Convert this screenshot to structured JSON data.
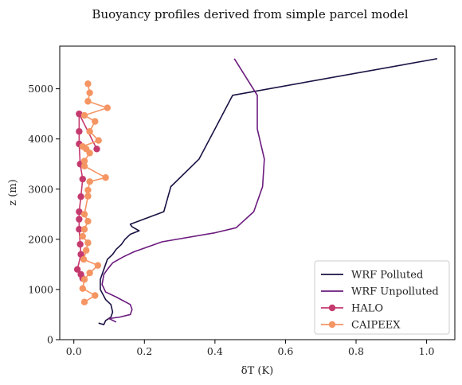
{
  "chart_data": {
    "type": "line",
    "title": "Buoyancy profiles derived from simple parcel model",
    "xlabel": "δT (K)",
    "ylabel": "z (m)",
    "xlim": [
      -0.04,
      1.08
    ],
    "ylim": [
      0,
      5850
    ],
    "xticks": [
      0.0,
      0.2,
      0.4,
      0.6,
      0.8,
      1.0
    ],
    "xtick_labels": [
      "0.0",
      "0.2",
      "0.4",
      "0.6",
      "0.8",
      "1.0"
    ],
    "yticks": [
      0,
      1000,
      2000,
      3000,
      4000,
      5000
    ],
    "ytick_labels": [
      "0",
      "1000",
      "2000",
      "3000",
      "4000",
      "5000"
    ],
    "grid": false,
    "legend_position": "bottom-right",
    "series": [
      {
        "name": "WRF Polluted",
        "color": "#1b1143",
        "marker": "none",
        "points": [
          [
            0.07,
            330
          ],
          [
            0.085,
            300
          ],
          [
            0.09,
            380
          ],
          [
            0.105,
            450
          ],
          [
            0.11,
            550
          ],
          [
            0.105,
            700
          ],
          [
            0.09,
            800
          ],
          [
            0.075,
            1000
          ],
          [
            0.075,
            1200
          ],
          [
            0.085,
            1400
          ],
          [
            0.09,
            1500
          ],
          [
            0.095,
            1600
          ],
          [
            0.11,
            1700
          ],
          [
            0.12,
            1800
          ],
          [
            0.135,
            1900
          ],
          [
            0.145,
            2000
          ],
          [
            0.16,
            2100
          ],
          [
            0.185,
            2170
          ],
          [
            0.165,
            2250
          ],
          [
            0.16,
            2300
          ],
          [
            0.255,
            2550
          ],
          [
            0.275,
            3050
          ],
          [
            0.355,
            3600
          ],
          [
            0.4,
            4200
          ],
          [
            0.45,
            4870
          ],
          [
            1.03,
            5600
          ]
        ]
      },
      {
        "name": "WRF Unpolluted",
        "color": "#6b1b7e",
        "marker": "none",
        "points": [
          [
            0.12,
            350
          ],
          [
            0.1,
            420
          ],
          [
            0.13,
            450
          ],
          [
            0.16,
            500
          ],
          [
            0.165,
            600
          ],
          [
            0.16,
            700
          ],
          [
            0.12,
            850
          ],
          [
            0.09,
            950
          ],
          [
            0.08,
            1100
          ],
          [
            0.085,
            1300
          ],
          [
            0.095,
            1400
          ],
          [
            0.11,
            1530
          ],
          [
            0.14,
            1650
          ],
          [
            0.17,
            1750
          ],
          [
            0.25,
            1950
          ],
          [
            0.4,
            2130
          ],
          [
            0.46,
            2230
          ],
          [
            0.51,
            2550
          ],
          [
            0.535,
            3050
          ],
          [
            0.54,
            3600
          ],
          [
            0.52,
            4200
          ],
          [
            0.52,
            4870
          ],
          [
            0.455,
            5600
          ]
        ]
      },
      {
        "name": "HALO",
        "color": "#c53a6e",
        "marker": "circle",
        "points": [
          [
            0.025,
            1220
          ],
          [
            0.02,
            1300
          ],
          [
            0.01,
            1400
          ],
          [
            0.02,
            1700
          ],
          [
            0.018,
            1900
          ],
          [
            0.015,
            2200
          ],
          [
            0.015,
            2400
          ],
          [
            0.015,
            2550
          ],
          [
            0.02,
            2850
          ],
          [
            0.025,
            3200
          ],
          [
            0.018,
            3500
          ],
          [
            0.015,
            3900
          ],
          [
            0.015,
            4150
          ],
          [
            0.015,
            4500
          ],
          [
            0.065,
            3800
          ]
        ]
      },
      {
        "name": "CAIPEEX",
        "color": "#f59563",
        "marker": "circle",
        "points": [
          [
            0.03,
            750
          ],
          [
            0.06,
            880
          ],
          [
            0.025,
            1020
          ],
          [
            0.03,
            1200
          ],
          [
            0.045,
            1330
          ],
          [
            0.068,
            1480
          ],
          [
            0.028,
            1600
          ],
          [
            0.035,
            1780
          ],
          [
            0.04,
            1930
          ],
          [
            0.025,
            2060
          ],
          [
            0.03,
            2200
          ],
          [
            0.04,
            2360
          ],
          [
            0.03,
            2500
          ],
          [
            0.04,
            2860
          ],
          [
            0.04,
            2980
          ],
          [
            0.045,
            3150
          ],
          [
            0.09,
            3230
          ],
          [
            0.03,
            3460
          ],
          [
            0.03,
            3560
          ],
          [
            0.045,
            3720
          ],
          [
            0.035,
            3800
          ],
          [
            0.025,
            3850
          ],
          [
            0.07,
            3970
          ],
          [
            0.045,
            4150
          ],
          [
            0.06,
            4350
          ],
          [
            0.03,
            4470
          ],
          [
            0.095,
            4620
          ],
          [
            0.04,
            4750
          ],
          [
            0.045,
            4920
          ],
          [
            0.04,
            5100
          ]
        ]
      }
    ]
  }
}
